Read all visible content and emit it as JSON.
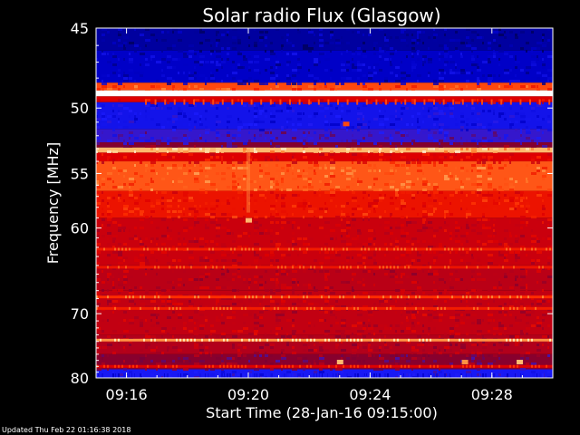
{
  "chart_data": {
    "type": "heatmap",
    "title": "Solar radio Flux (Glasgow)",
    "xlabel": "Start Time (28-Jan-16 09:15:00)",
    "ylabel": "Frequency [MHz]",
    "x_ticks": [
      "09:16",
      "09:20",
      "09:24",
      "09:28"
    ],
    "x_tick_minutes": [
      1,
      5,
      9,
      13
    ],
    "x_range_minutes": [
      0,
      15
    ],
    "y_ticks": [
      45,
      50,
      55,
      60,
      70,
      80
    ],
    "y_range": [
      45,
      80
    ],
    "y_scale": "reciprocal",
    "colormap": [
      "#00005a",
      "#0000c8",
      "#1e1eff",
      "#7a0033",
      "#b4001a",
      "#e00000",
      "#ff3000",
      "#ff8030",
      "#ffd890",
      "#ffffff"
    ],
    "bands": [
      {
        "from": 44.5,
        "to": 46.3,
        "level": 0.07
      },
      {
        "from": 46.3,
        "to": 48.3,
        "level": 0.11
      },
      {
        "from": 48.3,
        "to": 48.8,
        "level": 0.7
      },
      {
        "from": 48.8,
        "to": 49.2,
        "level": 1.0
      },
      {
        "from": 49.2,
        "to": 49.6,
        "level": 0.55
      },
      {
        "from": 49.6,
        "to": 51.5,
        "level": 0.18
      },
      {
        "from": 51.5,
        "to": 52.5,
        "level": 0.25
      },
      {
        "from": 52.5,
        "to": 52.9,
        "level": 0.35
      },
      {
        "from": 52.9,
        "to": 53.3,
        "level": 0.85
      },
      {
        "from": 53.3,
        "to": 54.0,
        "level": 0.55
      },
      {
        "from": 54.0,
        "to": 56.5,
        "level": 0.72
      },
      {
        "from": 56.5,
        "to": 59.0,
        "level": 0.6
      },
      {
        "from": 59.0,
        "to": 64.0,
        "level": 0.5
      },
      {
        "from": 64.0,
        "to": 67.0,
        "level": 0.46
      },
      {
        "from": 67.0,
        "to": 73.0,
        "level": 0.48
      },
      {
        "from": 73.0,
        "to": 76.0,
        "level": 0.44
      },
      {
        "from": 76.0,
        "to": 78.5,
        "level": 0.36
      },
      {
        "from": 78.5,
        "to": 80.5,
        "level": 0.2
      }
    ],
    "lines": [
      {
        "freq": 62.2,
        "level": 0.62
      },
      {
        "freq": 64.2,
        "level": 0.6
      },
      {
        "freq": 67.8,
        "level": 0.66
      },
      {
        "freq": 69.3,
        "level": 0.62
      },
      {
        "freq": 73.8,
        "level": 0.8
      },
      {
        "freq": 78.0,
        "level": 0.55
      }
    ],
    "bursts": [
      {
        "minute": 5.0,
        "freq": 59.2,
        "level": 0.85
      },
      {
        "minute": 8.2,
        "freq": 51.1,
        "level": 0.7
      },
      {
        "minute": 8.0,
        "freq": 77.2,
        "level": 0.85
      },
      {
        "minute": 12.1,
        "freq": 77.2,
        "level": 0.8
      },
      {
        "minute": 13.9,
        "freq": 77.2,
        "level": 0.85
      }
    ]
  },
  "footer": "Updated Thu Feb 22 01:16:38 2018"
}
